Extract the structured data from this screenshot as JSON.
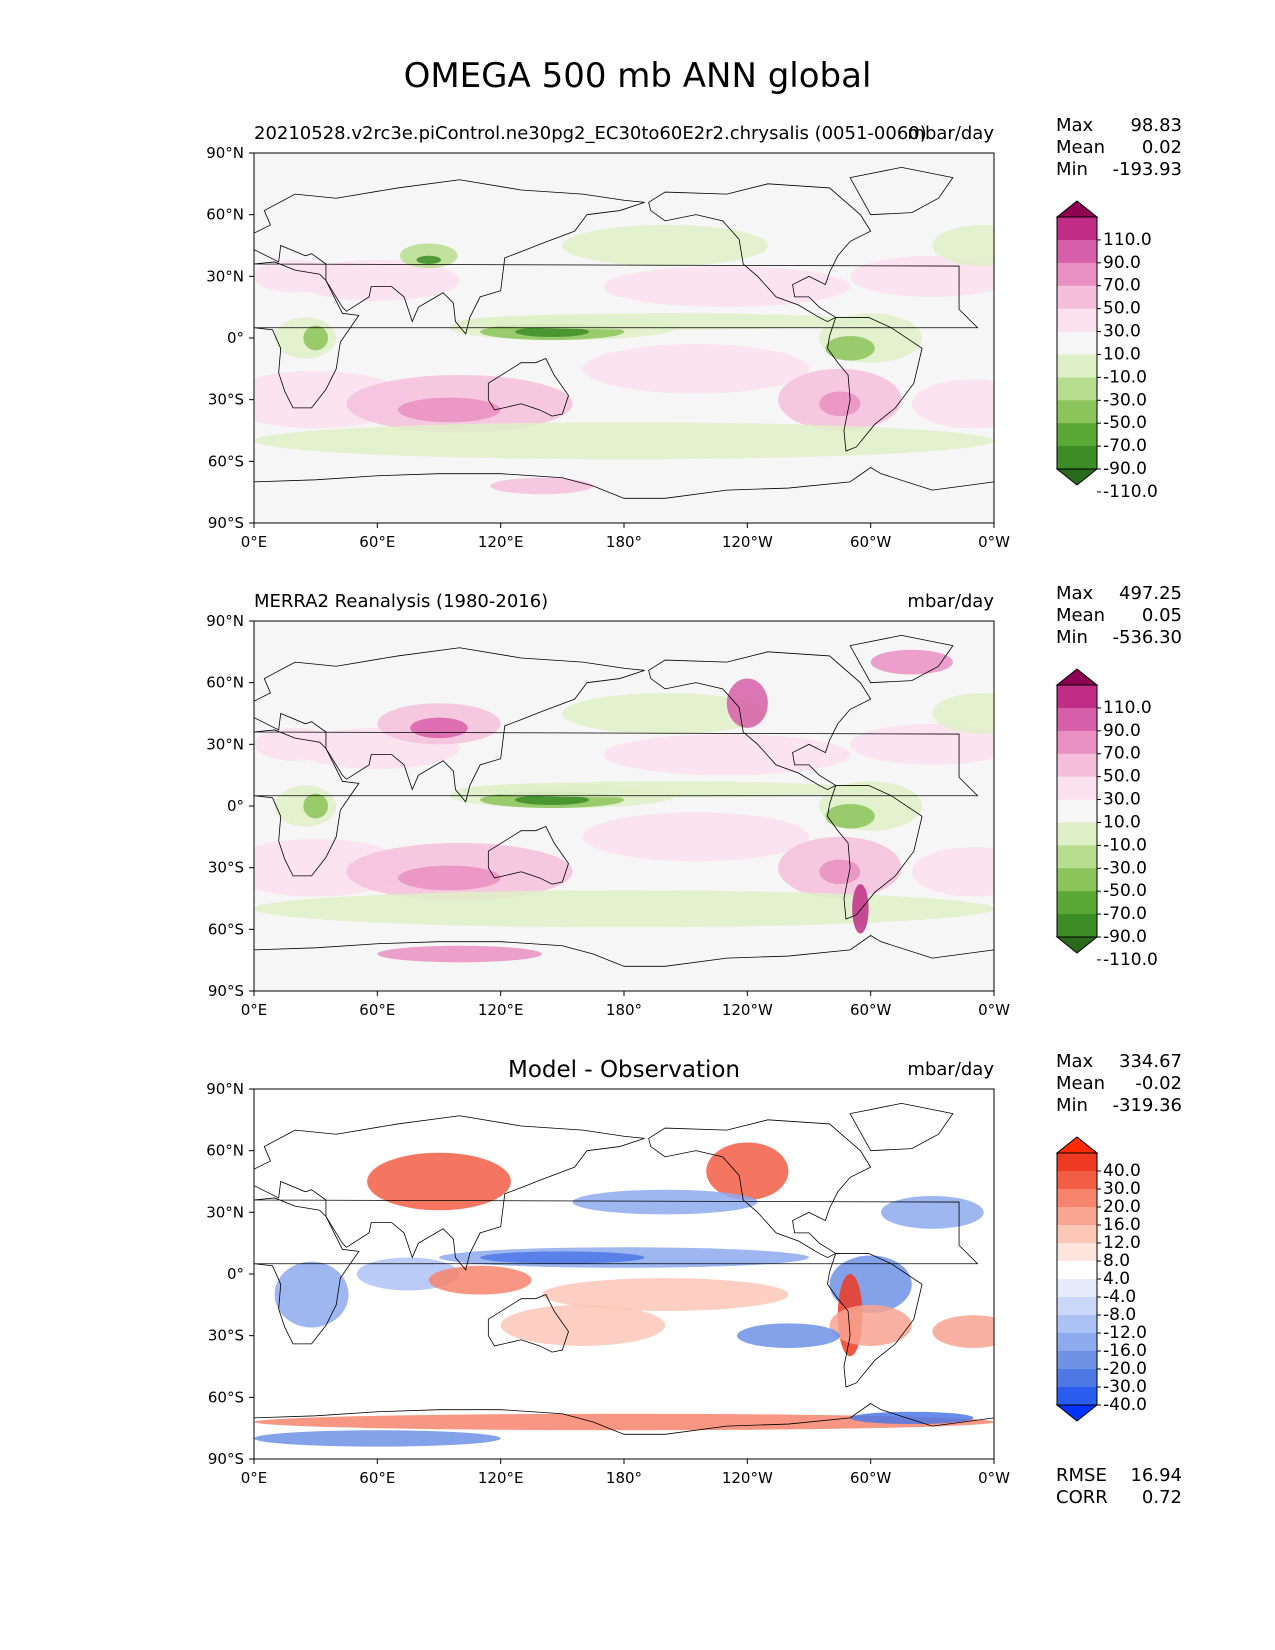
{
  "figure": {
    "title": "OMEGA 500 mb ANN global"
  },
  "axes": {
    "lat_ticks": [
      "90°N",
      "60°N",
      "30°N",
      "0°",
      "30°S",
      "60°S",
      "90°S"
    ],
    "lon_ticks": [
      "0°E",
      "60°E",
      "120°E",
      "180°",
      "120°W",
      "60°W",
      "0°W"
    ]
  },
  "colors": {
    "omega_levels": [
      "#2a6a1c",
      "#3c8d26",
      "#5aa836",
      "#8cc45c",
      "#b7dd8e",
      "#dff0c8",
      "#f6f6f6",
      "#fbe0ee",
      "#f5bfdc",
      "#e98fc2",
      "#d75ea8",
      "#bf2d86",
      "#8e0152"
    ],
    "diff_levels": [
      "#0033ff",
      "#2a5cf0",
      "#4d78e6",
      "#6f92e6",
      "#8eaaef",
      "#adc2f4",
      "#cbd7f8",
      "#e6ecfc",
      "#ffffff",
      "#fde4dc",
      "#fcc7b7",
      "#f8a592",
      "#f6846c",
      "#f25e45",
      "#ee3a22",
      "#ff2a00"
    ]
  },
  "panels": [
    {
      "id": "model",
      "left_title": "20210528.v2rc3e.piControl.ne30pg2_EC30to60E2r2.chrysalis (0051-0060)",
      "center_title": "",
      "right_title": "mbar/day",
      "stats": {
        "max_label": "Max",
        "max": "98.83",
        "mean_label": "Mean",
        "mean": "0.02",
        "min_label": "Min",
        "min": "-193.93"
      },
      "colorbar_labels": [
        "110.0",
        "90.0",
        "70.0",
        "50.0",
        "30.0",
        "10.0",
        "-10.0",
        "-30.0",
        "-50.0",
        "-70.0",
        "-90.0",
        "-110.0"
      ],
      "colorbar": "omega"
    },
    {
      "id": "obs",
      "left_title": "MERRA2 Reanalysis (1980-2016)",
      "center_title": "",
      "right_title": "mbar/day",
      "stats": {
        "max_label": "Max",
        "max": "497.25",
        "mean_label": "Mean",
        "mean": "0.05",
        "min_label": "Min",
        "min": "-536.30"
      },
      "colorbar_labels": [
        "110.0",
        "90.0",
        "70.0",
        "50.0",
        "30.0",
        "10.0",
        "-10.0",
        "-30.0",
        "-50.0",
        "-70.0",
        "-90.0",
        "-110.0"
      ],
      "colorbar": "omega"
    },
    {
      "id": "diff",
      "left_title": "",
      "center_title": "Model - Observation",
      "right_title": "mbar/day",
      "stats": {
        "max_label": "Max",
        "max": "334.67",
        "mean_label": "Mean",
        "mean": "-0.02",
        "min_label": "Min",
        "min": "-319.36"
      },
      "colorbar_labels": [
        "40.0",
        "30.0",
        "20.0",
        "16.0",
        "12.0",
        "8.0",
        "4.0",
        "-4.0",
        "-8.0",
        "-12.0",
        "-16.0",
        "-20.0",
        "-30.0",
        "-40.0"
      ],
      "colorbar": "diff",
      "extra_stats": {
        "rmse_label": "RMSE",
        "rmse": "16.94",
        "corr_label": "CORR",
        "corr": "0.72"
      }
    }
  ]
}
